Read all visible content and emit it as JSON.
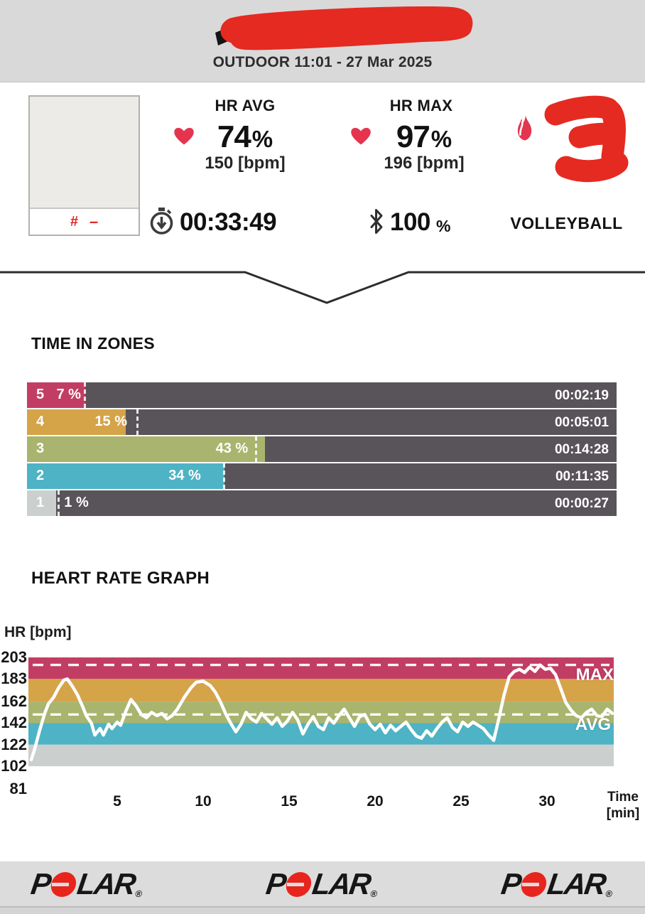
{
  "header": {
    "subtitle": "OUTDOOR 11:01 - 27 Mar 2025"
  },
  "summary": {
    "card": {
      "hash": "#",
      "dash": "–"
    },
    "hr_avg": {
      "label": "HR AVG",
      "value": "74",
      "unit": "%",
      "bpm": "150 [bpm]"
    },
    "hr_max": {
      "label": "HR MAX",
      "value": "97",
      "unit": "%",
      "bpm": "196 [bpm]"
    },
    "duration": "00:33:49",
    "battery": {
      "value": "100",
      "unit": "%"
    },
    "sport": "VOLLEYBALL"
  },
  "zones": {
    "title": "TIME IN ZONES",
    "rows": [
      {
        "zone": "5",
        "percent": "7 %",
        "time": "00:02:19",
        "color": "#c23d64",
        "bar_pct": 9.9,
        "dash_pct": 9.6,
        "label_left_pct": 5.0
      },
      {
        "zone": "4",
        "percent": "15 %",
        "time": "00:05:01",
        "color": "#d5a348",
        "bar_pct": 16.7,
        "dash_pct": 18.5,
        "label_left_pct": 11.5
      },
      {
        "zone": "3",
        "percent": "43 %",
        "time": "00:14:28",
        "color": "#a9b46e",
        "bar_pct": 40.4,
        "dash_pct": 38.7,
        "label_left_pct": 32.0
      },
      {
        "zone": "2",
        "percent": "34 %",
        "time": "00:11:35",
        "color": "#4eb3c4",
        "bar_pct": 33.5,
        "dash_pct": 33.2,
        "label_left_pct": 24.0
      },
      {
        "zone": "1",
        "percent": "1 %",
        "time": "00:00:27",
        "color": "#cbcfce",
        "bar_pct": 4.9,
        "dash_pct": 5.2,
        "label_left_pct": 6.3
      }
    ]
  },
  "hr_graph": {
    "title": "HEART RATE GRAPH",
    "y_axis_label": "HR [bpm]",
    "max_label": "MAX",
    "avg_label": "AVG",
    "x_axis_label_line1": "Time",
    "x_axis_label_line2": "[min]"
  },
  "chart_data": {
    "type": "line",
    "title": "HEART RATE GRAPH",
    "xlabel": "Time [min]",
    "ylabel": "HR [bpm]",
    "ylim": [
      81,
      203
    ],
    "xlim": [
      0,
      34
    ],
    "y_ticks": [
      203,
      183,
      162,
      142,
      122,
      102,
      81
    ],
    "x_ticks": [
      5,
      10,
      15,
      20,
      25,
      30
    ],
    "max_line": 196,
    "avg_line": 150,
    "grid": false,
    "legend_position": "none",
    "zone_bands": [
      {
        "zone": 5,
        "from": 183,
        "to": 203,
        "color": "#c23d64"
      },
      {
        "zone": 4,
        "from": 162,
        "to": 183,
        "color": "#d5a348"
      },
      {
        "zone": 3,
        "from": 142,
        "to": 162,
        "color": "#a9b46e"
      },
      {
        "zone": 2,
        "from": 122,
        "to": 142,
        "color": "#4eb3c4"
      },
      {
        "zone": 1,
        "from": 102,
        "to": 122,
        "color": "#cbcfce"
      }
    ],
    "series": [
      {
        "name": "heart_rate_bpm",
        "points": [
          [
            0,
            108
          ],
          [
            0.2,
            118
          ],
          [
            0.5,
            136
          ],
          [
            0.8,
            152
          ],
          [
            1.0,
            160
          ],
          [
            1.3,
            166
          ],
          [
            1.6,
            175
          ],
          [
            1.9,
            182
          ],
          [
            2.1,
            183
          ],
          [
            2.4,
            176
          ],
          [
            2.7,
            168
          ],
          [
            3.0,
            157
          ],
          [
            3.2,
            149
          ],
          [
            3.5,
            142
          ],
          [
            3.7,
            131
          ],
          [
            4.0,
            137
          ],
          [
            4.2,
            131
          ],
          [
            4.5,
            141
          ],
          [
            4.7,
            137
          ],
          [
            5.0,
            143
          ],
          [
            5.2,
            140
          ],
          [
            5.5,
            153
          ],
          [
            5.8,
            164
          ],
          [
            6.1,
            158
          ],
          [
            6.4,
            150
          ],
          [
            6.7,
            147
          ],
          [
            7.0,
            152
          ],
          [
            7.3,
            149
          ],
          [
            7.6,
            151
          ],
          [
            7.9,
            146
          ],
          [
            8.2,
            149
          ],
          [
            8.5,
            155
          ],
          [
            8.9,
            166
          ],
          [
            9.3,
            175
          ],
          [
            9.6,
            180
          ],
          [
            10.0,
            181
          ],
          [
            10.4,
            177
          ],
          [
            10.7,
            171
          ],
          [
            11.0,
            162
          ],
          [
            11.3,
            151
          ],
          [
            11.6,
            142
          ],
          [
            11.9,
            134
          ],
          [
            12.2,
            141
          ],
          [
            12.5,
            152
          ],
          [
            12.8,
            146
          ],
          [
            13.1,
            143
          ],
          [
            13.4,
            151
          ],
          [
            13.7,
            146
          ],
          [
            14.0,
            141
          ],
          [
            14.3,
            147
          ],
          [
            14.6,
            139
          ],
          [
            14.9,
            144
          ],
          [
            15.2,
            152
          ],
          [
            15.5,
            145
          ],
          [
            15.8,
            132
          ],
          [
            16.1,
            141
          ],
          [
            16.4,
            148
          ],
          [
            16.7,
            139
          ],
          [
            17.0,
            136
          ],
          [
            17.3,
            147
          ],
          [
            17.6,
            142
          ],
          [
            17.9,
            149
          ],
          [
            18.2,
            155
          ],
          [
            18.5,
            147
          ],
          [
            18.8,
            139
          ],
          [
            19.1,
            148
          ],
          [
            19.4,
            150
          ],
          [
            19.7,
            141
          ],
          [
            20.0,
            136
          ],
          [
            20.3,
            141
          ],
          [
            20.6,
            133
          ],
          [
            20.9,
            140
          ],
          [
            21.2,
            135
          ],
          [
            21.5,
            139
          ],
          [
            21.8,
            143
          ],
          [
            22.1,
            136
          ],
          [
            22.4,
            130
          ],
          [
            22.7,
            128
          ],
          [
            23.0,
            135
          ],
          [
            23.3,
            130
          ],
          [
            23.6,
            137
          ],
          [
            23.9,
            143
          ],
          [
            24.2,
            147
          ],
          [
            24.5,
            138
          ],
          [
            24.8,
            134
          ],
          [
            25.1,
            143
          ],
          [
            25.4,
            139
          ],
          [
            25.7,
            143
          ],
          [
            26.0,
            140
          ],
          [
            26.3,
            137
          ],
          [
            26.6,
            131
          ],
          [
            26.9,
            126
          ],
          [
            27.2,
            146
          ],
          [
            27.5,
            168
          ],
          [
            27.8,
            185
          ],
          [
            28.1,
            190
          ],
          [
            28.4,
            192
          ],
          [
            28.7,
            189
          ],
          [
            29.0,
            194
          ],
          [
            29.3,
            190
          ],
          [
            29.6,
            196
          ],
          [
            29.9,
            192
          ],
          [
            30.2,
            193
          ],
          [
            30.5,
            187
          ],
          [
            30.8,
            174
          ],
          [
            31.1,
            161
          ],
          [
            31.4,
            154
          ],
          [
            31.7,
            149
          ],
          [
            32.0,
            147
          ],
          [
            32.3,
            152
          ],
          [
            32.6,
            155
          ],
          [
            32.9,
            149
          ],
          [
            33.2,
            148
          ],
          [
            33.5,
            155
          ],
          [
            33.8,
            151
          ]
        ]
      }
    ]
  },
  "footer": {
    "logo_p": "P",
    "logo_lar": "LAR",
    "logo_reg": "®"
  }
}
